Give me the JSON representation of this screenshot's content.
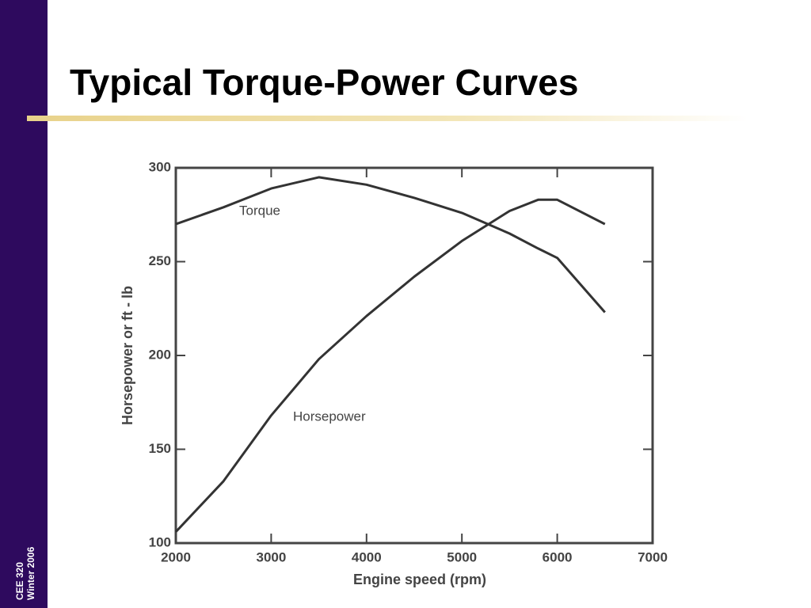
{
  "title": "Typical Torque-Power Curves",
  "sidebar": [
    "CEE 320",
    "Winter 2006"
  ],
  "chart_data": {
    "type": "line",
    "x_label": "Engine speed (rpm)",
    "y_label": "Horsepower or ft - lb",
    "x": [
      2000,
      2500,
      3000,
      3500,
      4000,
      4500,
      5000,
      5500,
      5800,
      6000,
      6500
    ],
    "series": [
      {
        "name": "Torque",
        "color": "#333333",
        "values": [
          270,
          279,
          289,
          295,
          291,
          284,
          276,
          265,
          257,
          252,
          223
        ]
      },
      {
        "name": "Horsepower",
        "color": "#333333",
        "values": [
          106,
          133,
          168,
          198,
          221,
          242,
          261,
          277,
          283,
          283,
          270
        ]
      }
    ],
    "xlim": [
      2000,
      7000
    ],
    "ylim": [
      100,
      300
    ],
    "xticks": [
      2000,
      3000,
      4000,
      5000,
      6000,
      7000
    ],
    "yticks": [
      100,
      150,
      200,
      250,
      300
    ]
  }
}
